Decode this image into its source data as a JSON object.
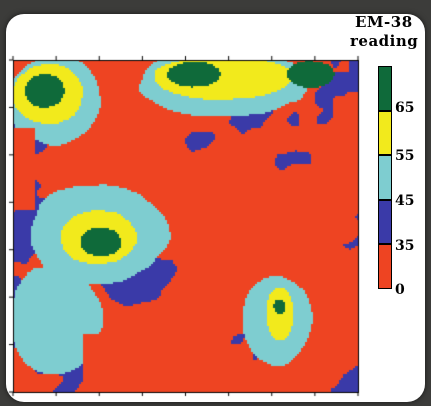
{
  "chart_data": {
    "type": "heatmap",
    "title": "",
    "legend": {
      "title_line1": "EM-38",
      "title_line2": "reading",
      "placement": "right",
      "bins": [
        {
          "from": 0,
          "to": 35,
          "color": "#ee4422"
        },
        {
          "from": 35,
          "to": 45,
          "color": "#3a3aa8"
        },
        {
          "from": 45,
          "to": 55,
          "color": "#7ecdd0"
        },
        {
          "from": 55,
          "to": 65,
          "color": "#f2ea1c"
        },
        {
          "from": 65,
          "to": 75,
          "color": "#0f6a3a"
        }
      ],
      "tick_labels": [
        "65",
        "55",
        "45",
        "35",
        "0"
      ]
    },
    "grid": false,
    "map_features": [
      {
        "kind": "band",
        "level": 30,
        "note": "central red band",
        "points": [
          [
            0.22,
            0.08
          ],
          [
            0.3,
            0.2
          ],
          [
            0.5,
            0.45
          ],
          [
            0.6,
            0.62
          ],
          [
            0.52,
            0.8
          ],
          [
            0.38,
            0.95
          ]
        ],
        "width": 0.14
      },
      {
        "kind": "blob",
        "level": 50,
        "x": 0.24,
        "y": 0.52,
        "rx": 0.18,
        "ry": 0.14
      },
      {
        "kind": "blob",
        "level": 60,
        "x": 0.24,
        "y": 0.53,
        "rx": 0.1,
        "ry": 0.075
      },
      {
        "kind": "blob",
        "level": 70,
        "x": 0.25,
        "y": 0.545,
        "rx": 0.055,
        "ry": 0.04
      },
      {
        "kind": "blob",
        "level": 50,
        "x": 0.12,
        "y": 0.78,
        "rx": 0.12,
        "ry": 0.15
      },
      {
        "kind": "blob",
        "level": 50,
        "x": 0.12,
        "y": 0.12,
        "rx": 0.12,
        "ry": 0.12
      },
      {
        "kind": "blob",
        "level": 60,
        "x": 0.1,
        "y": 0.1,
        "rx": 0.09,
        "ry": 0.08
      },
      {
        "kind": "blob",
        "level": 70,
        "x": 0.09,
        "y": 0.09,
        "rx": 0.05,
        "ry": 0.045
      },
      {
        "kind": "blob",
        "level": 50,
        "x": 0.6,
        "y": 0.07,
        "rx": 0.22,
        "ry": 0.09
      },
      {
        "kind": "blob",
        "level": 60,
        "x": 0.6,
        "y": 0.05,
        "rx": 0.18,
        "ry": 0.06
      },
      {
        "kind": "blob",
        "level": 70,
        "x": 0.52,
        "y": 0.04,
        "rx": 0.07,
        "ry": 0.035
      },
      {
        "kind": "blob",
        "level": 70,
        "x": 0.86,
        "y": 0.04,
        "rx": 0.06,
        "ry": 0.035
      },
      {
        "kind": "blob",
        "level": 50,
        "x": 0.76,
        "y": 0.78,
        "rx": 0.09,
        "ry": 0.12
      },
      {
        "kind": "blob",
        "level": 60,
        "x": 0.77,
        "y": 0.76,
        "rx": 0.035,
        "ry": 0.07
      },
      {
        "kind": "blob",
        "level": 70,
        "x": 0.77,
        "y": 0.74,
        "rx": 0.015,
        "ry": 0.02
      },
      {
        "kind": "blob",
        "level": 30,
        "x": 0.88,
        "y": 0.5,
        "rx": 0.12,
        "ry": 0.06
      }
    ]
  }
}
